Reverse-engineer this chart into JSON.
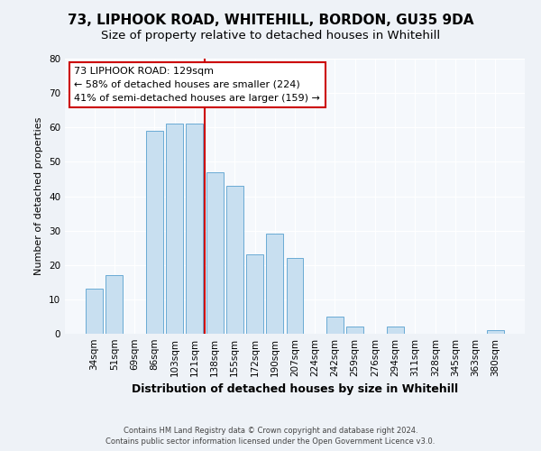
{
  "title": "73, LIPHOOK ROAD, WHITEHILL, BORDON, GU35 9DA",
  "subtitle": "Size of property relative to detached houses in Whitehill",
  "xlabel": "Distribution of detached houses by size in Whitehill",
  "ylabel": "Number of detached properties",
  "bar_labels": [
    "34sqm",
    "51sqm",
    "69sqm",
    "86sqm",
    "103sqm",
    "121sqm",
    "138sqm",
    "155sqm",
    "172sqm",
    "190sqm",
    "207sqm",
    "224sqm",
    "242sqm",
    "259sqm",
    "276sqm",
    "294sqm",
    "311sqm",
    "328sqm",
    "345sqm",
    "363sqm",
    "380sqm"
  ],
  "bar_values": [
    13,
    17,
    0,
    59,
    61,
    61,
    47,
    43,
    23,
    29,
    22,
    0,
    5,
    2,
    0,
    2,
    0,
    0,
    0,
    0,
    1
  ],
  "bar_color": "#c8dff0",
  "bar_edge_color": "#6aaad4",
  "vline_color": "#cc0000",
  "annotation_title": "73 LIPHOOK ROAD: 129sqm",
  "annotation_line1": "← 58% of detached houses are smaller (224)",
  "annotation_line2": "41% of semi-detached houses are larger (159) →",
  "annotation_box_color": "#ffffff",
  "annotation_box_edge": "#cc0000",
  "ylim": [
    0,
    80
  ],
  "yticks": [
    0,
    10,
    20,
    30,
    40,
    50,
    60,
    70,
    80
  ],
  "footer1": "Contains HM Land Registry data © Crown copyright and database right 2024.",
  "footer2": "Contains public sector information licensed under the Open Government Licence v3.0.",
  "bg_color": "#eef2f7",
  "plot_bg_color": "#f5f8fc",
  "grid_color": "#ffffff",
  "title_fontsize": 11,
  "subtitle_fontsize": 9.5,
  "ylabel_fontsize": 8,
  "xlabel_fontsize": 9,
  "tick_fontsize": 7.5,
  "footer_fontsize": 6,
  "annot_fontsize": 8
}
